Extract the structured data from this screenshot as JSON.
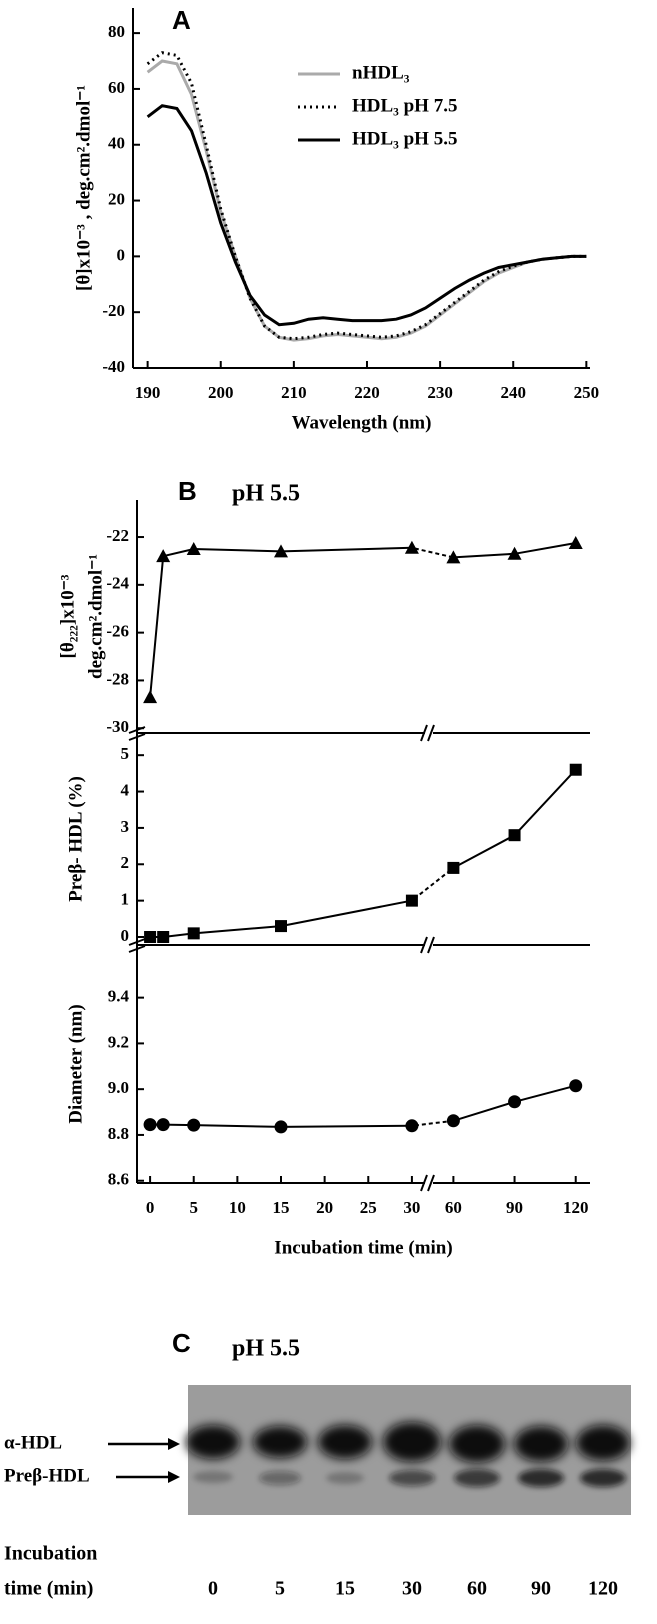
{
  "chart_data": [
    {
      "type": "line",
      "label": "A",
      "x": [
        190,
        192,
        194,
        196,
        198,
        200,
        202,
        204,
        206,
        208,
        210,
        212,
        214,
        216,
        218,
        220,
        222,
        224,
        226,
        228,
        230,
        232,
        234,
        236,
        238,
        240,
        242,
        244,
        246,
        248,
        250
      ],
      "series": [
        {
          "name": "nHDL₃",
          "color": "#aaaaaa",
          "style": "solid",
          "values": [
            66,
            70,
            69,
            58,
            38,
            16,
            0,
            -15,
            -25,
            -29,
            -30,
            -29.5,
            -28.5,
            -28,
            -28.5,
            -29,
            -29.5,
            -29,
            -27.5,
            -25,
            -21,
            -17,
            -13,
            -9,
            -6,
            -4,
            -2,
            -1,
            -0.5,
            0,
            0
          ]
        },
        {
          "name": "HDL₃ pH 7.5",
          "color": "#000000",
          "style": "dotted",
          "values": [
            69,
            73,
            72,
            62,
            40,
            17,
            0,
            -15,
            -25,
            -29,
            -29.5,
            -29,
            -28,
            -27.5,
            -28,
            -28.5,
            -29,
            -28.5,
            -27,
            -24.5,
            -20.5,
            -16.5,
            -12.5,
            -8.5,
            -5.5,
            -3.5,
            -2,
            -1,
            -0.5,
            0,
            0
          ]
        },
        {
          "name": "HDL₃ pH 5.5",
          "color": "#000000",
          "style": "solid",
          "values": [
            50,
            54,
            53,
            45,
            30,
            12,
            -2,
            -14,
            -21,
            -24.5,
            -24,
            -22.5,
            -22,
            -22.5,
            -23,
            -23,
            -23,
            -22.5,
            -21,
            -18.5,
            -15,
            -11.5,
            -8.5,
            -6,
            -4,
            -3,
            -2,
            -1,
            -0.5,
            0,
            0
          ]
        }
      ],
      "xlim": [
        188,
        250.5
      ],
      "ylim": [
        -40,
        89
      ],
      "xticks": [
        190,
        200,
        210,
        220,
        230,
        240,
        250
      ],
      "yticks": [
        -40,
        -20,
        0,
        20,
        40,
        60,
        80
      ],
      "xlabel": "Wavelength (nm)",
      "ylabel": "[θ]x10⁻³ , deg.cm².dmol⁻¹",
      "legend": "upper right"
    },
    {
      "type": "line",
      "label": "B",
      "title": "pH 5.5",
      "marker": "triangle",
      "color": "#000000",
      "x": [
        0,
        1.5,
        5,
        15,
        30,
        60,
        90,
        120
      ],
      "values": [
        -28.7,
        -22.8,
        -22.5,
        -22.6,
        -22.45,
        -22.85,
        -22.7,
        -22.25
      ],
      "xlim": [
        [
          -1.5,
          31.5
        ],
        [
          50,
          127
        ]
      ],
      "ylim": [
        -30.2,
        -20.45
      ],
      "yticks": [
        -30,
        -28,
        -26,
        -24,
        -22
      ],
      "ylabel": [
        "[θ₂₂₂]x10⁻³",
        "deg.cm².dmol⁻¹"
      ]
    },
    {
      "type": "line",
      "marker": "square",
      "color": "#000000",
      "x": [
        0,
        1.5,
        5,
        15,
        30,
        60,
        90,
        120
      ],
      "values": [
        0,
        0,
        0.1,
        0.3,
        1.0,
        1.9,
        2.8,
        4.6
      ],
      "xlim": [
        [
          -1.5,
          31.5
        ],
        [
          50,
          127
        ]
      ],
      "ylim": [
        -0.22,
        5.61
      ],
      "yticks": [
        0,
        1,
        2,
        3,
        4,
        5
      ],
      "ylabel": "Preβ- HDL (%)"
    },
    {
      "type": "line",
      "marker": "circle",
      "color": "#000000",
      "x": [
        0,
        1.5,
        5,
        15,
        30,
        60,
        90,
        120
      ],
      "values": [
        8.845,
        8.845,
        8.843,
        8.835,
        8.84,
        8.862,
        8.945,
        9.015
      ],
      "xlim": [
        [
          -1.5,
          31.5
        ],
        [
          50,
          127
        ]
      ],
      "ylim": [
        8.59,
        9.63
      ],
      "xticks": [
        0,
        5,
        10,
        15,
        20,
        25,
        30,
        60,
        90,
        120
      ],
      "yticks": [
        8.6,
        8.8,
        {
          "value": 9,
          "label": "9.0"
        },
        9.2,
        9.4
      ],
      "ylabel": "Diameter (nm)",
      "xlabel": "Incubation time (min)"
    }
  ],
  "gel": {
    "label": "C",
    "title": "pH 5.5",
    "bands": [
      "α-HDL",
      "Preβ-HDL"
    ],
    "row_label": [
      "Incubation",
      "time (min)"
    ],
    "lanes": [
      "0",
      "5",
      "15",
      "30",
      "60",
      "90",
      "120"
    ]
  }
}
